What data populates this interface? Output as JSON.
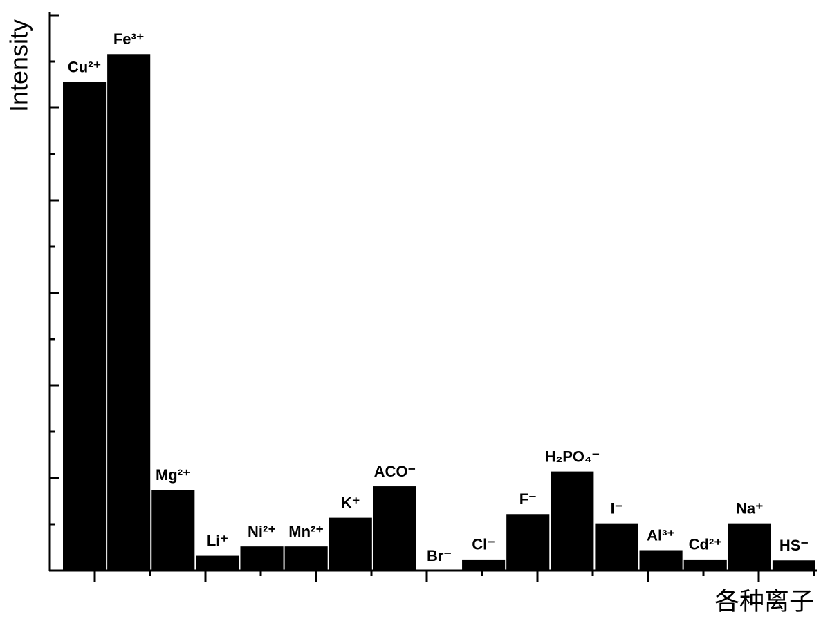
{
  "chart_data": {
    "type": "bar",
    "y_label": "Intensity",
    "x_label": "各种离子",
    "categories": [
      "Cu²⁺",
      "Fe³⁺",
      "Mg²⁺",
      "Li⁺",
      "Ni²⁺",
      "Mn²⁺",
      "K⁺",
      "ACO⁻",
      "Br⁻",
      "Cl⁻",
      "F⁻",
      "H₂PO₄⁻",
      "I⁻",
      "Al³⁺",
      "Cd²⁺",
      "Na⁺",
      "HS⁻"
    ],
    "values": [
      5.28,
      5.58,
      0.87,
      0.16,
      0.26,
      0.26,
      0.57,
      0.91,
      0,
      0.12,
      0.61,
      1.07,
      0.51,
      0.22,
      0.12,
      0.51,
      0.11
    ],
    "color": "#000000",
    "ylim": [
      0,
      6
    ],
    "yticks": [
      0,
      1,
      2,
      3,
      4,
      5,
      6
    ],
    "yminor_ticks": [
      0.5,
      1.5,
      2.5,
      3.5,
      4.5,
      5.5
    ]
  }
}
